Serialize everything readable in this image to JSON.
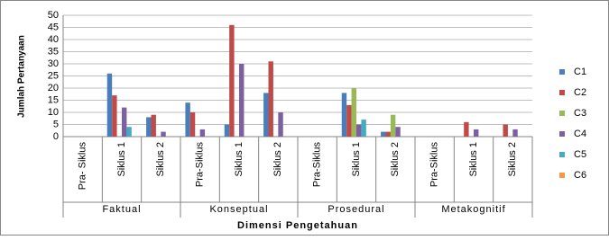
{
  "chart_data": {
    "type": "bar",
    "x_label": "Dimensi Pengetahuan",
    "y_label": "Jumlah Pertanyaan",
    "group_labels": [
      "Faktual",
      "Konseptual",
      "Prosedural",
      "Metakognitif"
    ],
    "categories": [
      "Pra- Siklus",
      "Siklus 1",
      "Siklus 2",
      "Pra-Siklus",
      "Siklus 1",
      "Siklus 2",
      "Pra-Siklus",
      "Siklus 1",
      "Siklus 2",
      "Pra-Siklus",
      "Siklus 1",
      "Siklus 2"
    ],
    "series": [
      {
        "name": "C1",
        "color": "#4a7ebb",
        "values": [
          0,
          26,
          8,
          14,
          5,
          18,
          0,
          18,
          2,
          0,
          0,
          0
        ]
      },
      {
        "name": "C2",
        "color": "#be4b48",
        "values": [
          0,
          17,
          9,
          10,
          46,
          31,
          0,
          13,
          2,
          0,
          6,
          5
        ]
      },
      {
        "name": "C3",
        "color": "#98b954",
        "values": [
          0,
          0,
          0,
          0,
          0,
          0,
          0,
          20,
          9,
          0,
          0,
          0
        ]
      },
      {
        "name": "C4",
        "color": "#7d60a0",
        "values": [
          0,
          12,
          2,
          3,
          30,
          10,
          0,
          5,
          4,
          0,
          3,
          3
        ]
      },
      {
        "name": "C5",
        "color": "#46aac5",
        "values": [
          0,
          4,
          0,
          0,
          0,
          0,
          0,
          7,
          0,
          0,
          0,
          0
        ]
      },
      {
        "name": "C6",
        "color": "#f79646",
        "values": [
          0,
          0,
          0,
          0,
          0,
          0,
          0,
          0,
          0,
          0,
          0,
          0
        ]
      }
    ],
    "ylim": [
      0,
      50
    ],
    "yticks": [
      0,
      5,
      10,
      15,
      20,
      25,
      30,
      35,
      40,
      45,
      50
    ],
    "grid": true,
    "legend": "right"
  }
}
